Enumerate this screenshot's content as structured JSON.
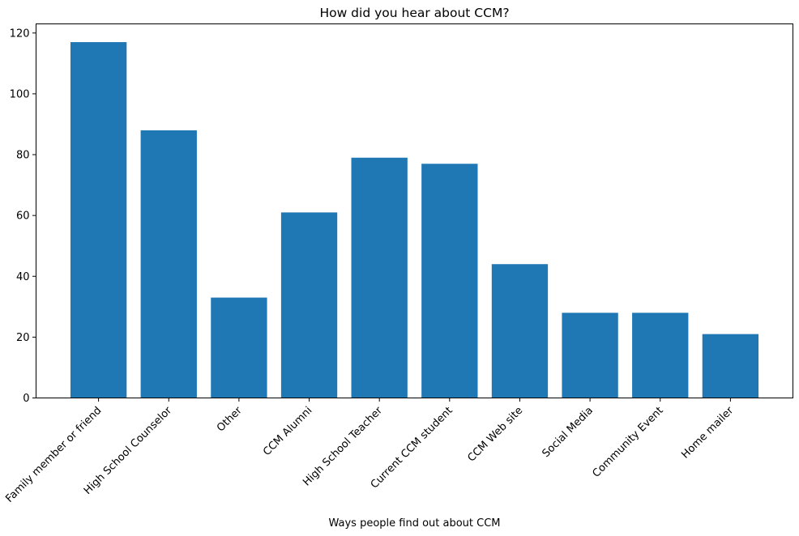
{
  "chart_data": {
    "type": "bar",
    "title": "How did you hear about CCM?",
    "xlabel": "Ways people find out about CCM",
    "ylabel": "",
    "categories": [
      "Family member or friend",
      "High School Counselor",
      "Other",
      "CCM Alumni",
      "High School Teacher",
      "Current CCM student",
      "CCM Web site",
      "Social Media",
      "Community Event",
      "Home mailer"
    ],
    "values": [
      117,
      88,
      33,
      61,
      79,
      77,
      44,
      28,
      28,
      21
    ],
    "ylim": [
      0,
      123
    ],
    "yticks": [
      0,
      20,
      40,
      60,
      80,
      100,
      120
    ],
    "ytick_labels": [
      "0",
      "20",
      "40",
      "60",
      "80",
      "100",
      "120"
    ],
    "bar_color": "#1f77b4",
    "grid": false,
    "legend": "none",
    "xtick_rotation_deg": 45
  }
}
